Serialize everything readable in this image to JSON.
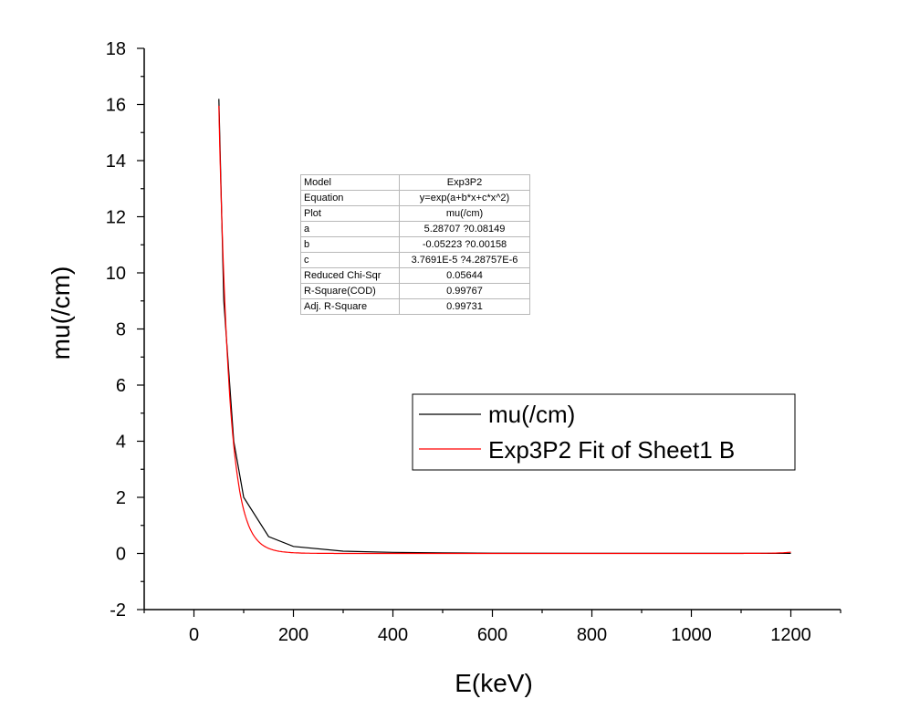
{
  "chart_data": {
    "type": "line",
    "title": "",
    "xlabel": "E(keV)",
    "ylabel": "mu(/cm)",
    "xlim": [
      -100,
      1300
    ],
    "ylim": [
      -2,
      18
    ],
    "x_ticks": [
      "0",
      "200",
      "400",
      "600",
      "800",
      "1000",
      "1200"
    ],
    "y_ticks": [
      "-2",
      "0",
      "2",
      "4",
      "6",
      "8",
      "10",
      "12",
      "14",
      "16",
      "18"
    ],
    "grid": false,
    "legend_position": "center-right",
    "series": [
      {
        "name": "mu(/cm)",
        "color": "#000000",
        "x": [
          50,
          60,
          80,
          100,
          150,
          200,
          300,
          400,
          500,
          600,
          800,
          1000,
          1200
        ],
        "y": [
          16.2,
          9.0,
          4.0,
          2.0,
          0.6,
          0.25,
          0.08,
          0.04,
          0.02,
          0.01,
          0.005,
          0.003,
          0.002
        ]
      },
      {
        "name": "Exp3P2 Fit of Sheet1 B",
        "color": "#ff0000",
        "fit": {
          "a": 5.28707,
          "b": -0.05223,
          "c": 3.7691e-05
        },
        "x_range": [
          50,
          1200
        ]
      }
    ]
  },
  "fit_table": {
    "rows": [
      {
        "key": "Model",
        "value": "Exp3P2"
      },
      {
        "key": "Equation",
        "value": "y=exp(a+b*x+c*x^2)"
      },
      {
        "key": "Plot",
        "value": "mu(/cm)"
      },
      {
        "key": "a",
        "value": "5.28707 ?0.08149"
      },
      {
        "key": "b",
        "value": "-0.05223 ?0.00158"
      },
      {
        "key": "c",
        "value": "3.7691E-5 ?4.28757E-6"
      },
      {
        "key": "Reduced Chi-Sqr",
        "value": "0.05644"
      },
      {
        "key": "R-Square(COD)",
        "value": "0.99767"
      },
      {
        "key": "Adj. R-Square",
        "value": "0.99731"
      }
    ]
  }
}
